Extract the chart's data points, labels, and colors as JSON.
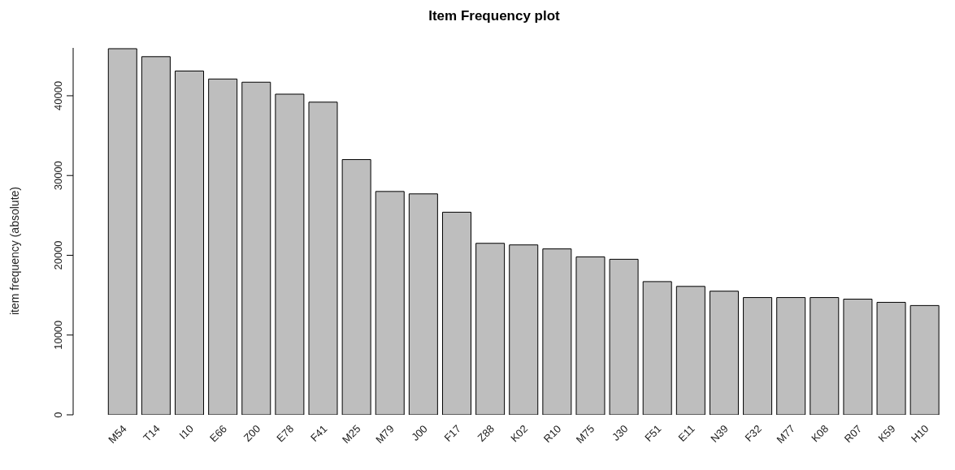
{
  "chart_data": {
    "type": "bar",
    "title": "Item Frequency plot",
    "ylabel": "item frequency (absolute)",
    "categories": [
      "M54",
      "T14",
      "I10",
      "E66",
      "Z00",
      "E78",
      "F41",
      "M25",
      "M79",
      "J00",
      "F17",
      "Z88",
      "K02",
      "R10",
      "M75",
      "J30",
      "F51",
      "E11",
      "N39",
      "F32",
      "M77",
      "K08",
      "R07",
      "K59",
      "H10"
    ],
    "values": [
      45900,
      44900,
      43100,
      42100,
      41700,
      40200,
      39200,
      32000,
      28000,
      27700,
      25400,
      21500,
      21300,
      20800,
      19800,
      19500,
      16700,
      16100,
      15500,
      14700,
      14700,
      14700,
      14500,
      14100,
      13700
    ],
    "color": "#bebebe",
    "ylim": [
      0,
      46000
    ],
    "yticks": [
      0,
      10000,
      20000,
      30000,
      40000
    ],
    "grid": false
  }
}
